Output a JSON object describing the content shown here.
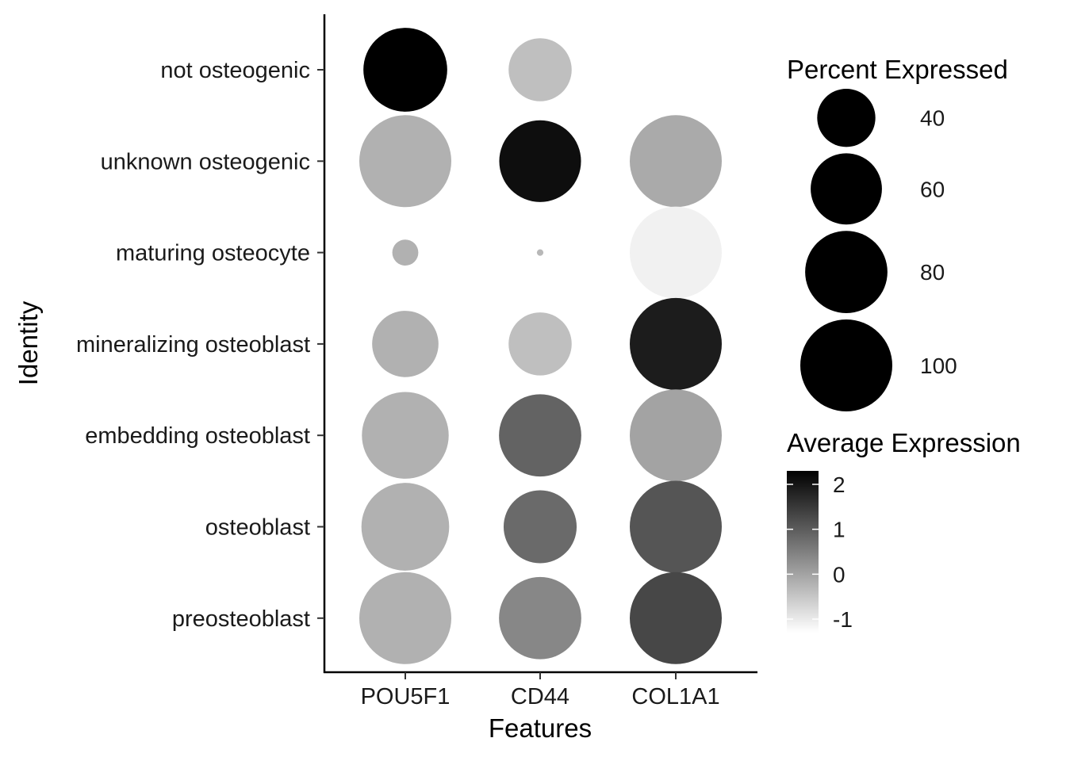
{
  "chart_data": {
    "type": "dot",
    "xlabel": "Features",
    "ylabel": "Identity",
    "features": [
      "POU5F1",
      "CD44",
      "COL1A1"
    ],
    "identities": [
      "not osteogenic",
      "unknown osteogenic",
      "maturing osteocyte",
      "mineralizing osteoblast",
      "embedding osteoblast",
      "osteoblast",
      "preosteoblast"
    ],
    "percent_expressed": [
      [
        83,
        47,
        100
      ],
      [
        100,
        79,
        100
      ],
      [
        8,
        0.5,
        100
      ],
      [
        52,
        47,
        100
      ],
      [
        89,
        80,
        100
      ],
      [
        91,
        63,
        100
      ],
      [
        100,
        80,
        100
      ]
    ],
    "average_expression": [
      [
        2.3,
        -0.4,
        -1.3
      ],
      [
        -0.2,
        2.1,
        -0.1
      ],
      [
        -0.2,
        -0.3,
        -1.1
      ],
      [
        -0.2,
        -0.4,
        1.9
      ],
      [
        -0.2,
        0.9,
        0.0
      ],
      [
        -0.2,
        0.8,
        1.1
      ],
      [
        -0.2,
        0.4,
        1.3
      ]
    ],
    "size_legend": {
      "title": "Percent Expressed",
      "breaks": [
        40,
        60,
        80,
        100
      ],
      "labels": [
        "40",
        "60",
        "80",
        "100"
      ]
    },
    "color_legend": {
      "title": "Average Expression",
      "range": [
        -1.3,
        2.3
      ],
      "breaks": [
        -1,
        0,
        1,
        2
      ],
      "labels": [
        "-1",
        "0",
        "1",
        "2"
      ],
      "low_color": "#ffffff",
      "high_color": "#000000"
    },
    "grid": false
  }
}
